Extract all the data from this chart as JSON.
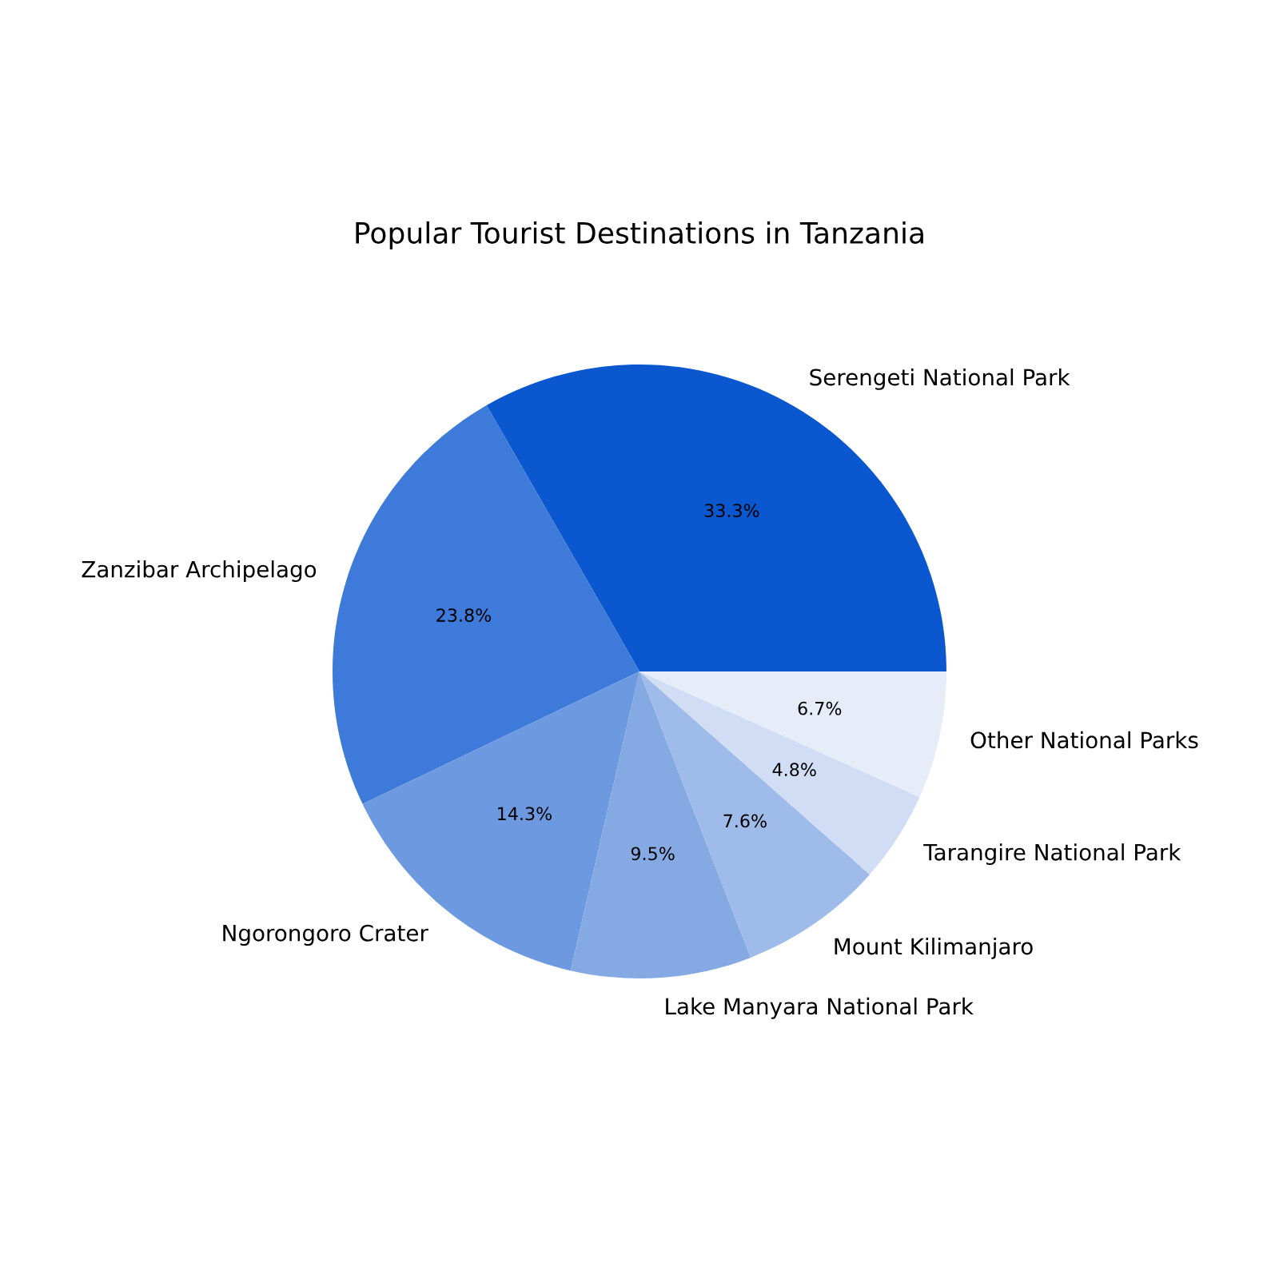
{
  "chart_data": {
    "type": "pie",
    "title": "Popular Tourist Destinations in Tanzania",
    "categories": [
      "Serengeti National Park",
      "Zanzibar Archipelago",
      "Ngorongoro Crater",
      "Lake Manyara National Park",
      "Mount Kilimanjaro",
      "Tarangire National Park",
      "Other National Parks"
    ],
    "values": [
      33.3,
      23.8,
      14.3,
      9.5,
      7.6,
      4.8,
      6.7
    ],
    "value_labels": [
      "33.3%",
      "23.8%",
      "14.3%",
      "9.5%",
      "7.6%",
      "4.8%",
      "6.7%"
    ],
    "colors": [
      "#0b57d0",
      "#3d7ad9",
      "#6d99e0",
      "#84a9e3",
      "#9ebbe9",
      "#d0ddf5",
      "#e6edf9"
    ]
  }
}
